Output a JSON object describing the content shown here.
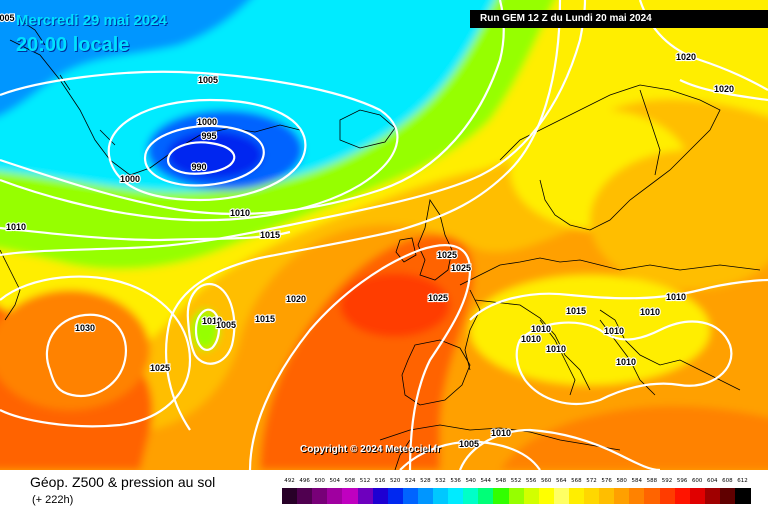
{
  "header": {
    "date": "Mercredi 29 mai 2024",
    "local_time": "20:00 locale",
    "run": "Run GEM 12 Z du Lundi 20 mai 2024"
  },
  "copyright": "Copyright © 2024 Meteociel.fr",
  "footer": {
    "product": "Géop. Z500 & pression au sol",
    "lead_time": "(+ 222h)"
  },
  "pressure_labels": [
    "005",
    "1005",
    "1000",
    "995",
    "990",
    "1000",
    "1010",
    "1010",
    "1015",
    "1025",
    "1025",
    "1025",
    "1020",
    "1015",
    "1030",
    "1010",
    "1005",
    "1025",
    "1015",
    "1010",
    "1010",
    "1010",
    "1010",
    "1010",
    "1010",
    "1010",
    "1005",
    "1010",
    "1020",
    "1020"
  ],
  "legend": {
    "values": [
      "492",
      "496",
      "500",
      "504",
      "508",
      "512",
      "516",
      "520",
      "524",
      "528",
      "532",
      "536",
      "540",
      "544",
      "548",
      "552",
      "556",
      "560",
      "564",
      "568",
      "572",
      "576",
      "580",
      "584",
      "588",
      "592",
      "596",
      "600",
      "604",
      "608",
      "612"
    ],
    "colors": [
      "#280028",
      "#500050",
      "#780078",
      "#a000a0",
      "#c000c0",
      "#6e00be",
      "#1e00d2",
      "#0028f0",
      "#0064ff",
      "#0096ff",
      "#00c8ff",
      "#00ebff",
      "#00ffc8",
      "#00ff78",
      "#32ff00",
      "#96ff00",
      "#d2ff00",
      "#ffff00",
      "#ffff64",
      "#ffee00",
      "#ffd700",
      "#ffbe00",
      "#ffa000",
      "#ff8200",
      "#ff6400",
      "#ff3c00",
      "#ff1400",
      "#e00000",
      "#a00000",
      "#600000",
      "#000000"
    ]
  }
}
